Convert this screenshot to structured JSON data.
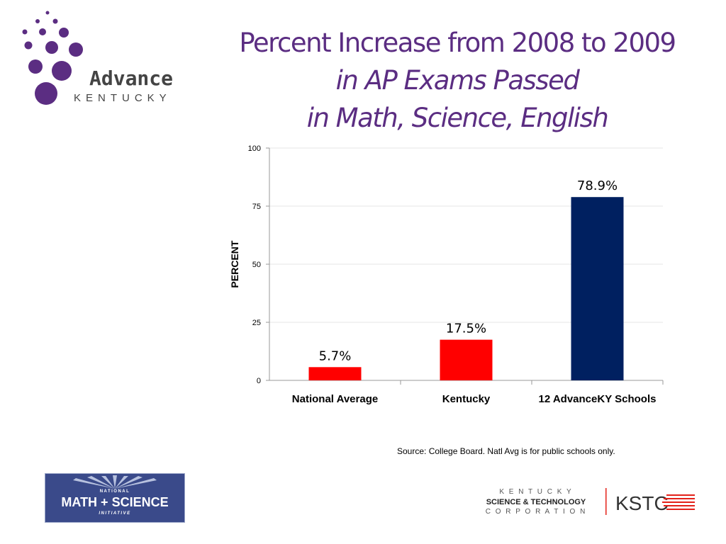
{
  "title_lines": [
    "Percent Increase from 2008 to 2009",
    "in AP Exams Passed",
    "in Math, Science, English"
  ],
  "logo_advance": {
    "word1": "Advance",
    "word2": "KENTUCKY",
    "color": "#5b2d82"
  },
  "chart_data": {
    "type": "bar",
    "categories": [
      "National Average",
      "Kentucky",
      "12 AdvanceKY Schools"
    ],
    "values": [
      5.7,
      17.5,
      78.9
    ],
    "data_labels": [
      "5.7%",
      "17.5%",
      "78.9%"
    ],
    "colors": [
      "#ff0000",
      "#ff0000",
      "#002060"
    ],
    "ylabel": "PERCENT",
    "ylim": [
      0,
      100
    ],
    "yticks": [
      0,
      25,
      50,
      75,
      100
    ],
    "grid": true
  },
  "source_text": "Source: College Board. Natl Avg is for public schools only.",
  "logo_nmsi": {
    "line1": "NATIONAL",
    "line2": "MATH + SCIENCE",
    "line3": "INITIATIVE",
    "bg": "#3a4a8a"
  },
  "logo_kstc": {
    "line1": "K E N T U C K Y",
    "line2": "SCIENCE & TECHNOLOGY",
    "line3": "C O R P O R A T I O N",
    "abbr": "KSTC",
    "accent": "#e32119"
  }
}
